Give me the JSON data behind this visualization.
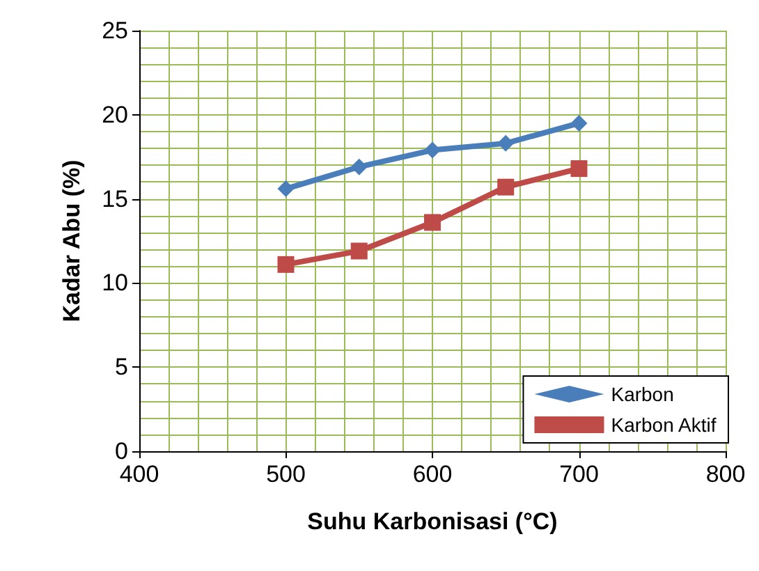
{
  "chart_data": {
    "type": "line",
    "xlabel": "Suhu Karbonisasi (°C)",
    "ylabel": "Kadar Abu (%)",
    "x": [
      500,
      550,
      600,
      650,
      700
    ],
    "series": [
      {
        "name": "Karbon",
        "color": "#4a7ebb",
        "marker": "diamond",
        "values": [
          15.6,
          16.9,
          17.9,
          18.3,
          19.5
        ]
      },
      {
        "name": "Karbon Aktif",
        "color": "#be4b48",
        "marker": "square",
        "values": [
          11.1,
          11.9,
          13.6,
          15.7,
          16.8
        ]
      }
    ],
    "xlim": [
      400,
      800
    ],
    "xticks": [
      400,
      500,
      600,
      700,
      800
    ],
    "ylim": [
      0,
      25
    ],
    "yticks": [
      0,
      5,
      10,
      15,
      20,
      25
    ],
    "grid": true,
    "legend": "bottom right",
    "line_style": "solid"
  }
}
